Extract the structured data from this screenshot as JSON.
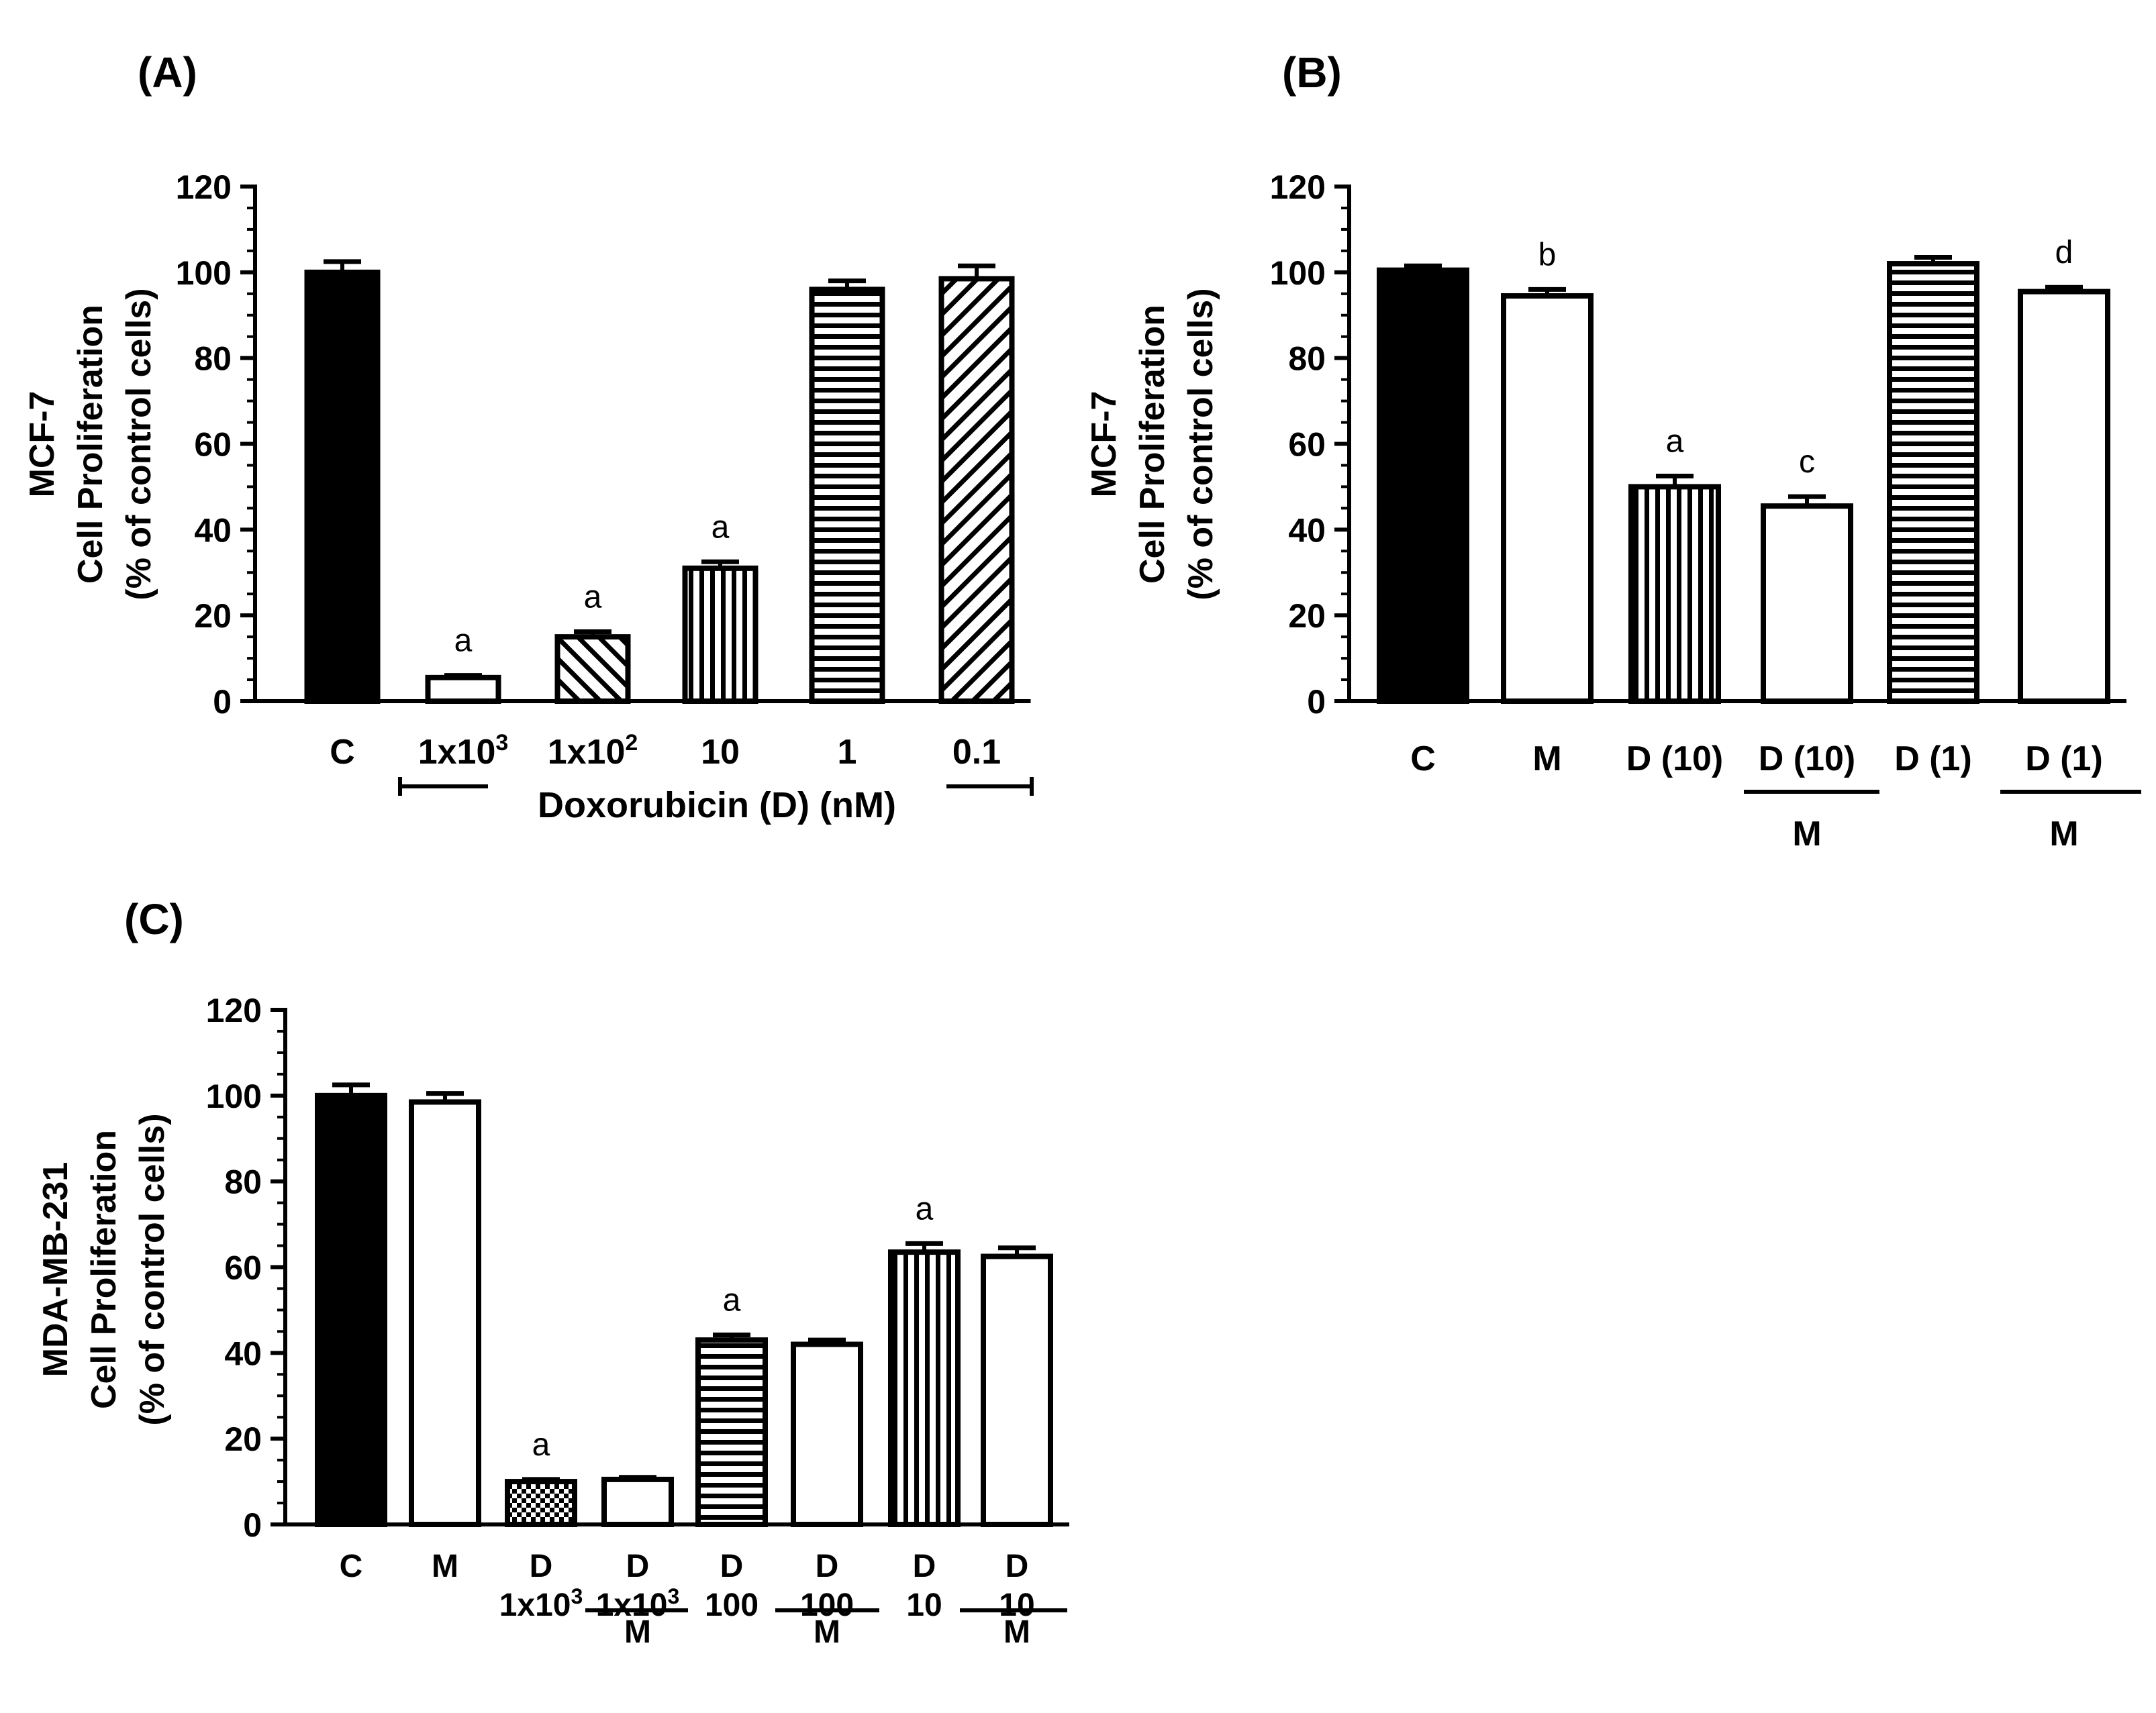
{
  "panels": [
    {
      "id": "A",
      "label": "(A)",
      "chart_data": {
        "type": "bar",
        "ylabel": [
          "MCF-7",
          "Cell Proliferation",
          "(% of control cells)"
        ],
        "ylim": [
          0,
          120
        ],
        "yticks": [
          0,
          20,
          40,
          60,
          80,
          100,
          120
        ],
        "categories": [
          {
            "lines": [
              "C"
            ],
            "value": 100,
            "error": 2.5,
            "pattern": "solid",
            "sig": ""
          },
          {
            "lines": [
              "1x10^3"
            ],
            "value": 5.5,
            "error": 0.5,
            "pattern": "empty",
            "sig": "a"
          },
          {
            "lines": [
              "1x10^2"
            ],
            "value": 15,
            "error": 1.2,
            "pattern": "diag-back",
            "sig": "a"
          },
          {
            "lines": [
              "10"
            ],
            "value": 31,
            "error": 1.5,
            "pattern": "vertical",
            "sig": "a"
          },
          {
            "lines": [
              "1"
            ],
            "value": 96,
            "error": 2.0,
            "pattern": "horizontal",
            "sig": ""
          },
          {
            "lines": [
              "0.1"
            ],
            "value": 98.5,
            "error": 3.0,
            "pattern": "diag-fwd",
            "sig": ""
          }
        ],
        "xlabel": "Doxorubicin (D) (nM)"
      }
    },
    {
      "id": "B",
      "label": "(B)",
      "chart_data": {
        "type": "bar",
        "ylabel": [
          "MCF-7",
          "Cell Proliferation",
          "(% of control cells)"
        ],
        "ylim": [
          0,
          120
        ],
        "yticks": [
          0,
          20,
          40,
          60,
          80,
          100,
          120
        ],
        "categories": [
          {
            "lines": [
              "C"
            ],
            "value": 100.5,
            "error": 1.0,
            "pattern": "solid",
            "sig": ""
          },
          {
            "lines": [
              "M"
            ],
            "value": 94.5,
            "error": 1.5,
            "pattern": "empty",
            "sig": "b"
          },
          {
            "lines": [
              "D (10)"
            ],
            "value": 50,
            "error": 2.5,
            "pattern": "vertical",
            "sig": "a"
          },
          {
            "lines": [
              "D (10)",
              "M"
            ],
            "value": 45.5,
            "error": 2.2,
            "pattern": "empty",
            "sig": "c"
          },
          {
            "lines": [
              "D (1)"
            ],
            "value": 102,
            "error": 1.5,
            "pattern": "horizontal",
            "sig": ""
          },
          {
            "lines": [
              "D (1)",
              "M"
            ],
            "value": 95.5,
            "error": 1.0,
            "pattern": "empty",
            "sig": "d"
          }
        ]
      }
    },
    {
      "id": "C",
      "label": "(C)",
      "chart_data": {
        "type": "bar",
        "ylabel": [
          "MDA-MB-231",
          "Cell Proliferation",
          "(% of control cells)"
        ],
        "ylim": [
          0,
          120
        ],
        "yticks": [
          0,
          20,
          40,
          60,
          80,
          100,
          120
        ],
        "categories": [
          {
            "lines": [
              "C"
            ],
            "value": 100,
            "error": 2.5,
            "pattern": "solid",
            "sig": ""
          },
          {
            "lines": [
              "M"
            ],
            "value": 98.5,
            "error": 2.0,
            "pattern": "empty",
            "sig": ""
          },
          {
            "lines": [
              "D",
              "1x10^3"
            ],
            "value": 10,
            "error": 0.5,
            "pattern": "checker",
            "sig": "a"
          },
          {
            "lines": [
              "D",
              "1x10^3",
              "M"
            ],
            "value": 10.5,
            "error": 0.5,
            "pattern": "empty",
            "sig": ""
          },
          {
            "lines": [
              "D",
              "100"
            ],
            "value": 43,
            "error": 1.2,
            "pattern": "horizontal",
            "sig": "a"
          },
          {
            "lines": [
              "D",
              "100",
              "M"
            ],
            "value": 42,
            "error": 1.0,
            "pattern": "empty",
            "sig": ""
          },
          {
            "lines": [
              "D",
              "10"
            ],
            "value": 63.5,
            "error": 2.0,
            "pattern": "vertical",
            "sig": "a"
          },
          {
            "lines": [
              "D",
              "10",
              "M"
            ],
            "value": 62.5,
            "error": 2.0,
            "pattern": "empty",
            "sig": ""
          }
        ]
      }
    }
  ]
}
